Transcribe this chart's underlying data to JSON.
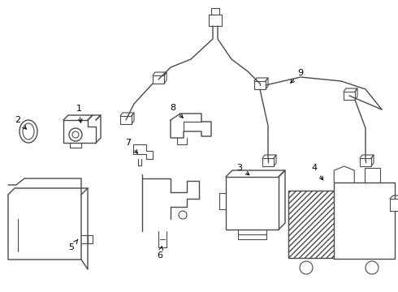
{
  "bg_color": "#ffffff",
  "line_color": "#4a4a4a",
  "fig_width": 4.9,
  "fig_height": 3.6,
  "dpi": 100
}
